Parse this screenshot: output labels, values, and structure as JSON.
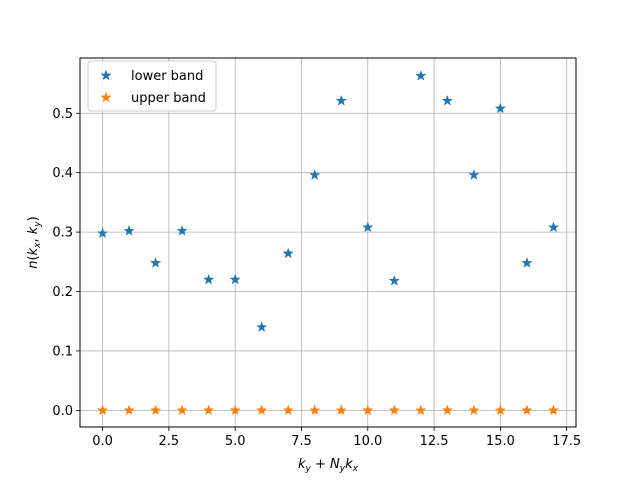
{
  "chart_data": {
    "type": "scatter",
    "title": "",
    "xlabel": "k_y + N_y k_x",
    "ylabel": "n(k_x, k_y)",
    "xlim": [
      -0.85,
      17.85
    ],
    "ylim": [
      -0.028,
      0.593
    ],
    "x_ticks": [
      0.0,
      2.5,
      5.0,
      7.5,
      10.0,
      12.5,
      15.0,
      17.5
    ],
    "x_tick_labels": [
      "0.0",
      "2.5",
      "5.0",
      "7.5",
      "10.0",
      "12.5",
      "15.0",
      "17.5"
    ],
    "y_ticks": [
      0.0,
      0.1,
      0.2,
      0.3,
      0.4,
      0.5
    ],
    "y_tick_labels": [
      "0.0",
      "0.1",
      "0.2",
      "0.3",
      "0.4",
      "0.5"
    ],
    "grid": true,
    "legend_position": "top-left",
    "x": [
      0,
      1,
      2,
      3,
      4,
      5,
      6,
      7,
      8,
      9,
      10,
      11,
      12,
      13,
      14,
      15,
      16,
      17
    ],
    "series": [
      {
        "name": "lower band",
        "color": "#1f77b4",
        "marker": "star",
        "values": [
          0.298,
          0.302,
          0.248,
          0.302,
          0.22,
          0.22,
          0.14,
          0.264,
          0.396,
          0.521,
          0.308,
          0.218,
          0.563,
          0.521,
          0.396,
          0.508,
          0.248,
          0.308
        ]
      },
      {
        "name": "upper band",
        "color": "#ff7f0e",
        "marker": "star",
        "values": [
          0,
          0,
          0,
          0,
          0,
          0,
          0,
          0,
          0,
          0,
          0,
          0,
          0,
          0,
          0,
          0,
          0,
          0
        ]
      }
    ]
  }
}
